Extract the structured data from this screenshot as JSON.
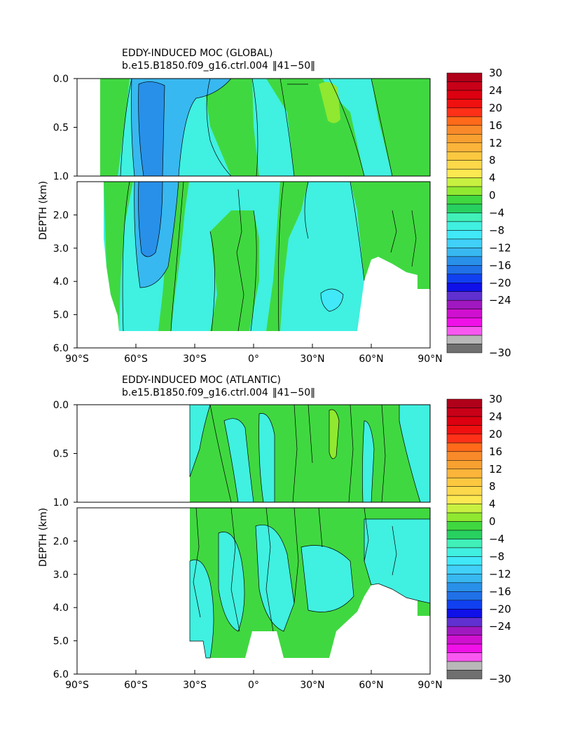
{
  "chart_data": [
    {
      "type": "heatmap",
      "title": "EDDY-INDUCED MOC (GLOBAL)",
      "subtitle": "b.e15.B1850.f09_g16.ctrl.004 ‖ 41−50‖",
      "subtitle_case": "b.e15.B1850.f09_g16.ctrl.004",
      "subtitle_years": "‖41−50‖",
      "ylabel": "DEPTH (km)",
      "xlabel": "",
      "xlim": [
        -90,
        90
      ],
      "ylim_upper": [
        0.0,
        1.0
      ],
      "ylim_lower": [
        1.0,
        6.0
      ],
      "xticks": [
        "90°S",
        "60°S",
        "30°S",
        "0°",
        "30°N",
        "60°N",
        "90°N"
      ],
      "yticks_upper": [
        "0.0",
        "0.5",
        "1.0"
      ],
      "yticks_lower": [
        "2.0",
        "3.0",
        "4.0",
        "5.0",
        "6.0"
      ],
      "ocean_extent_lat": [
        -77,
        90
      ],
      "features": [
        {
          "kind": "min",
          "name": "southern-ocean-cell",
          "lat": -55,
          "depth_km": 2.5,
          "value": -14
        },
        {
          "kind": "max",
          "name": "north-atlantic-cell",
          "lat": 40,
          "depth_km": 0.3,
          "value": 3
        }
      ]
    },
    {
      "type": "heatmap",
      "title": "EDDY-INDUCED MOC (ATLANTIC)",
      "subtitle": "b.e15.B1850.f09_g16.ctrl.004 ‖ 41−50‖",
      "subtitle_case": "b.e15.B1850.f09_g16.ctrl.004",
      "subtitle_years": "‖41−50‖",
      "ylabel": "DEPTH (km)",
      "xlabel": "",
      "xlim": [
        -90,
        90
      ],
      "ylim_upper": [
        0.0,
        1.0
      ],
      "ylim_lower": [
        1.0,
        6.0
      ],
      "xticks": [
        "90°S",
        "60°S",
        "30°S",
        "0°",
        "30°N",
        "60°N",
        "90°N"
      ],
      "yticks_upper": [
        "0.0",
        "0.5",
        "1.0"
      ],
      "yticks_lower": [
        "2.0",
        "3.0",
        "4.0",
        "5.0",
        "6.0"
      ],
      "ocean_extent_lat": [
        -33,
        90
      ],
      "features": [
        {
          "kind": "max",
          "name": "north-atlantic-cell",
          "lat": 40,
          "depth_km": 0.3,
          "value": 2
        }
      ]
    }
  ],
  "colorbar": {
    "labels": [
      "30",
      "24",
      "20",
      "16",
      "12",
      "8",
      "4",
      "0",
      "−4",
      "−8",
      "−12",
      "−16",
      "−20",
      "−24",
      "−30"
    ],
    "colors": [
      "#b0001a",
      "#c80018",
      "#dc0010",
      "#f01010",
      "#ff3018",
      "#ff6a1a",
      "#f88a2a",
      "#f8a030",
      "#fcb43a",
      "#fcc840",
      "#fcd84a",
      "#fce850",
      "#c8f040",
      "#90e830",
      "#40d840",
      "#28d060",
      "#40f0b8",
      "#40f0e0",
      "#40e8f8",
      "#40d0f8",
      "#38b8f0",
      "#2890e8",
      "#2070e8",
      "#1040f0",
      "#1010e8",
      "#6030d0",
      "#a018c0",
      "#d010d0",
      "#f010e8",
      "#f858f0",
      "#b8b8b8",
      "#707070"
    ]
  },
  "colors": {
    "zero_band": "#40d840",
    "neg4_band": "#40f0e0",
    "pos_band": "#90e830"
  }
}
